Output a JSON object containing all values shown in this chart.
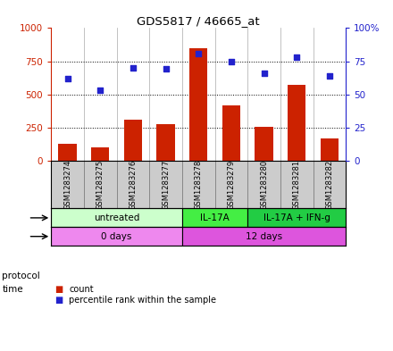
{
  "title": "GDS5817 / 46665_at",
  "samples": [
    "GSM1283274",
    "GSM1283275",
    "GSM1283276",
    "GSM1283277",
    "GSM1283278",
    "GSM1283279",
    "GSM1283280",
    "GSM1283281",
    "GSM1283282"
  ],
  "counts": [
    130,
    100,
    310,
    275,
    850,
    420,
    258,
    575,
    168
  ],
  "percentiles": [
    62,
    53,
    70,
    69,
    81,
    75,
    66,
    78,
    64
  ],
  "ylim_left": [
    0,
    1000
  ],
  "ylim_right": [
    0,
    100
  ],
  "yticks_left": [
    0,
    250,
    500,
    750,
    1000
  ],
  "yticks_right": [
    0,
    25,
    50,
    75,
    100
  ],
  "bar_color": "#cc2200",
  "dot_color": "#2222cc",
  "protocol_groups": [
    {
      "label": "untreated",
      "start": 0,
      "end": 4,
      "color": "#ccffcc"
    },
    {
      "label": "IL-17A",
      "start": 4,
      "end": 6,
      "color": "#44ee44"
    },
    {
      "label": "IL-17A + IFN-g",
      "start": 6,
      "end": 9,
      "color": "#22cc44"
    }
  ],
  "time_groups": [
    {
      "label": "0 days",
      "start": 0,
      "end": 4,
      "color": "#ee88ee"
    },
    {
      "label": "12 days",
      "start": 4,
      "end": 9,
      "color": "#dd55dd"
    }
  ],
  "protocol_label": "protocol",
  "time_label": "time",
  "legend_count": "count",
  "legend_percentile": "percentile rank within the sample",
  "left_axis_color": "#cc2200",
  "right_axis_color": "#2222cc",
  "sample_bg": "#cccccc",
  "sample_border": "#888888"
}
